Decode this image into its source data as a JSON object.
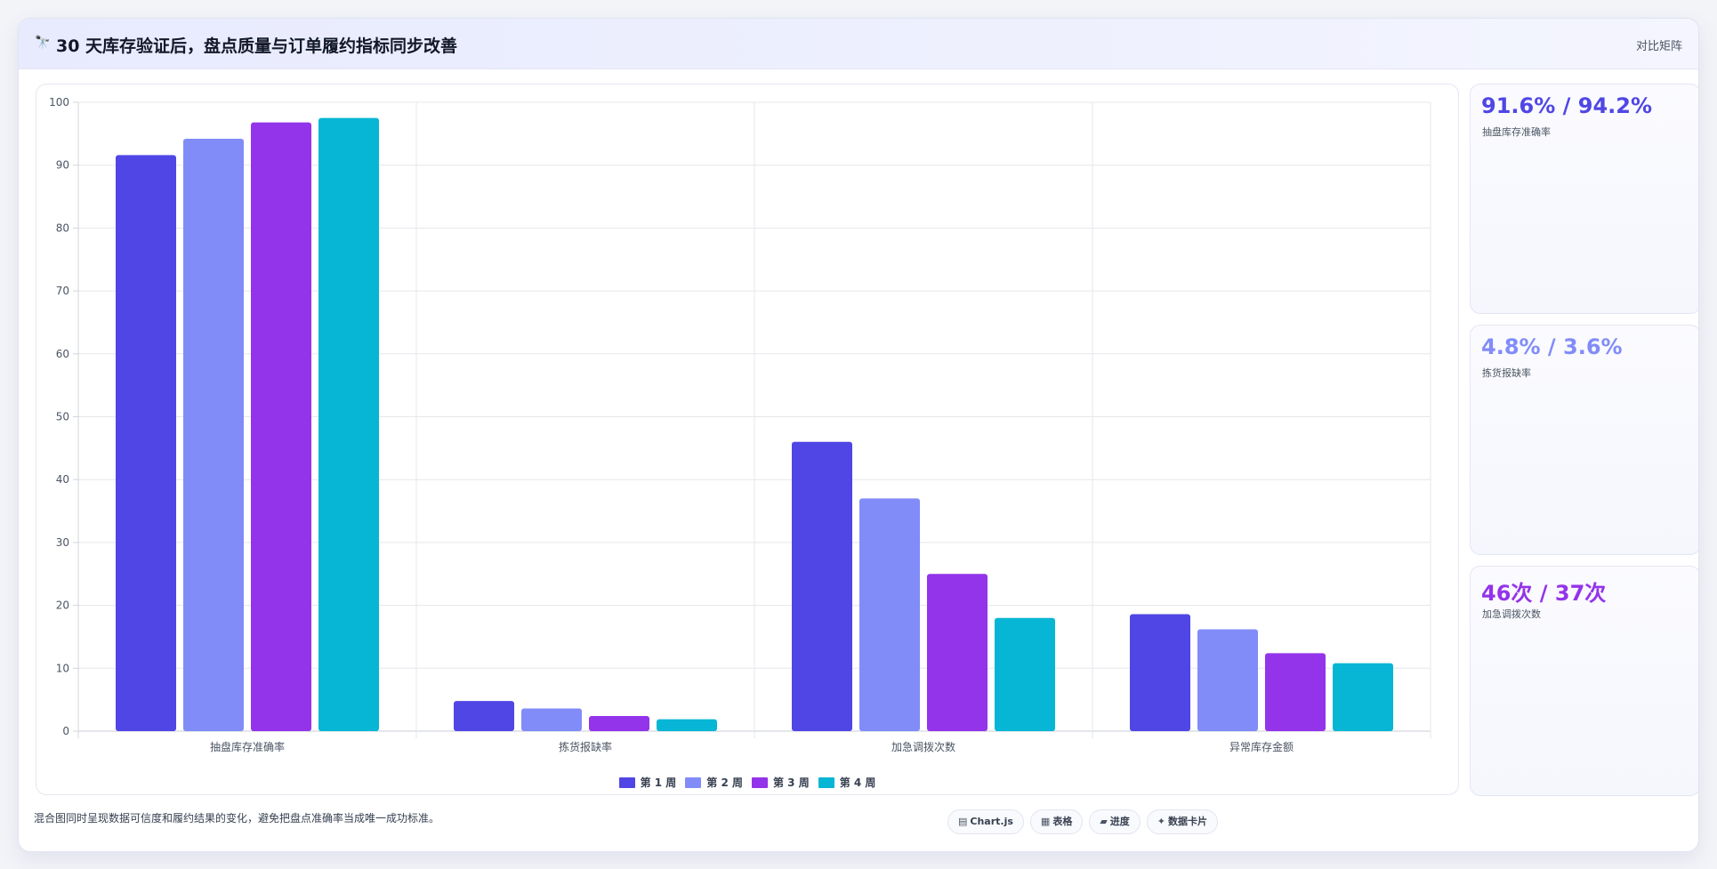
{
  "header": {
    "title_icon": "telescope-icon",
    "title_icon_glyph": "🔭",
    "title": "30 天库存验证后，盘点质量与订单履约指标同步改善",
    "matrix_link": "对比矩阵"
  },
  "colors": {
    "week1": "#4f46e5",
    "week2": "#818cf8",
    "week3": "#9333ea",
    "week4": "#06b6d4"
  },
  "chart_data": {
    "type": "bar",
    "title": "",
    "xlabel": "",
    "ylabel": "",
    "categories": [
      "抽盘库存准确率",
      "拣货报缺率",
      "加急调拨次数",
      "异常库存金额"
    ],
    "ylim": [
      0,
      100
    ],
    "yticks": [
      0,
      10,
      20,
      30,
      40,
      50,
      60,
      70,
      80,
      90,
      100
    ],
    "grid": true,
    "legend_position": "bottom",
    "series": [
      {
        "name": "第 1 周",
        "color": "#4f46e5",
        "values": [
          91.6,
          4.8,
          46,
          18.6
        ]
      },
      {
        "name": "第 2 周",
        "color": "#818cf8",
        "values": [
          94.2,
          3.6,
          37,
          16.2
        ]
      },
      {
        "name": "第 3 周",
        "color": "#9333ea",
        "values": [
          96.8,
          2.4,
          25,
          12.4
        ]
      },
      {
        "name": "第 4 周",
        "color": "#06b6d4",
        "values": [
          97.5,
          1.9,
          18,
          10.8
        ]
      }
    ]
  },
  "cards": [
    {
      "value": "91.6% / 94.2%",
      "label": "抽盘库存准确率",
      "color": "#4f46e5"
    },
    {
      "value": "4.8% / 3.6%",
      "label": "拣货报缺率",
      "color": "#818cf8"
    },
    {
      "value": "46次 / 37次",
      "label": "加急调拨次数",
      "color": "#9333ea"
    }
  ],
  "footnote": "混合图同时呈现数据可信度和履约结果的变化，避免把盘点准确率当成唯一成功标准。",
  "chips": [
    {
      "icon": "chart-icon",
      "glyph": "▤",
      "label": "Chart.js"
    },
    {
      "icon": "table-icon",
      "glyph": "▦",
      "label": "表格"
    },
    {
      "icon": "progress-icon",
      "glyph": "▰",
      "label": "进度"
    },
    {
      "icon": "sparkle-icon",
      "glyph": "✦",
      "label": "数据卡片"
    }
  ]
}
